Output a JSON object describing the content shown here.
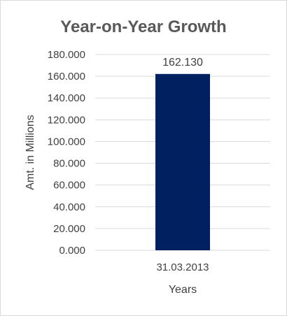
{
  "chart_data": {
    "type": "bar",
    "title": "Year-on-Year Growth",
    "xlabel": "Years",
    "ylabel": "Amt. in Millions",
    "categories": [
      "31.03.2013"
    ],
    "values": [
      162.13
    ],
    "value_labels": [
      "162.130"
    ],
    "ylim": [
      0,
      180
    ],
    "yticks": [
      0,
      20,
      40,
      60,
      80,
      100,
      120,
      140,
      160,
      180
    ],
    "ytick_labels": [
      "0.000",
      "20.000",
      "40.000",
      "60.000",
      "80.000",
      "100.000",
      "120.000",
      "140.000",
      "160.000",
      "180.000"
    ],
    "grid": true,
    "legend": "none",
    "bar_color": "#002060",
    "gridline_color": "#d9d9d9"
  }
}
